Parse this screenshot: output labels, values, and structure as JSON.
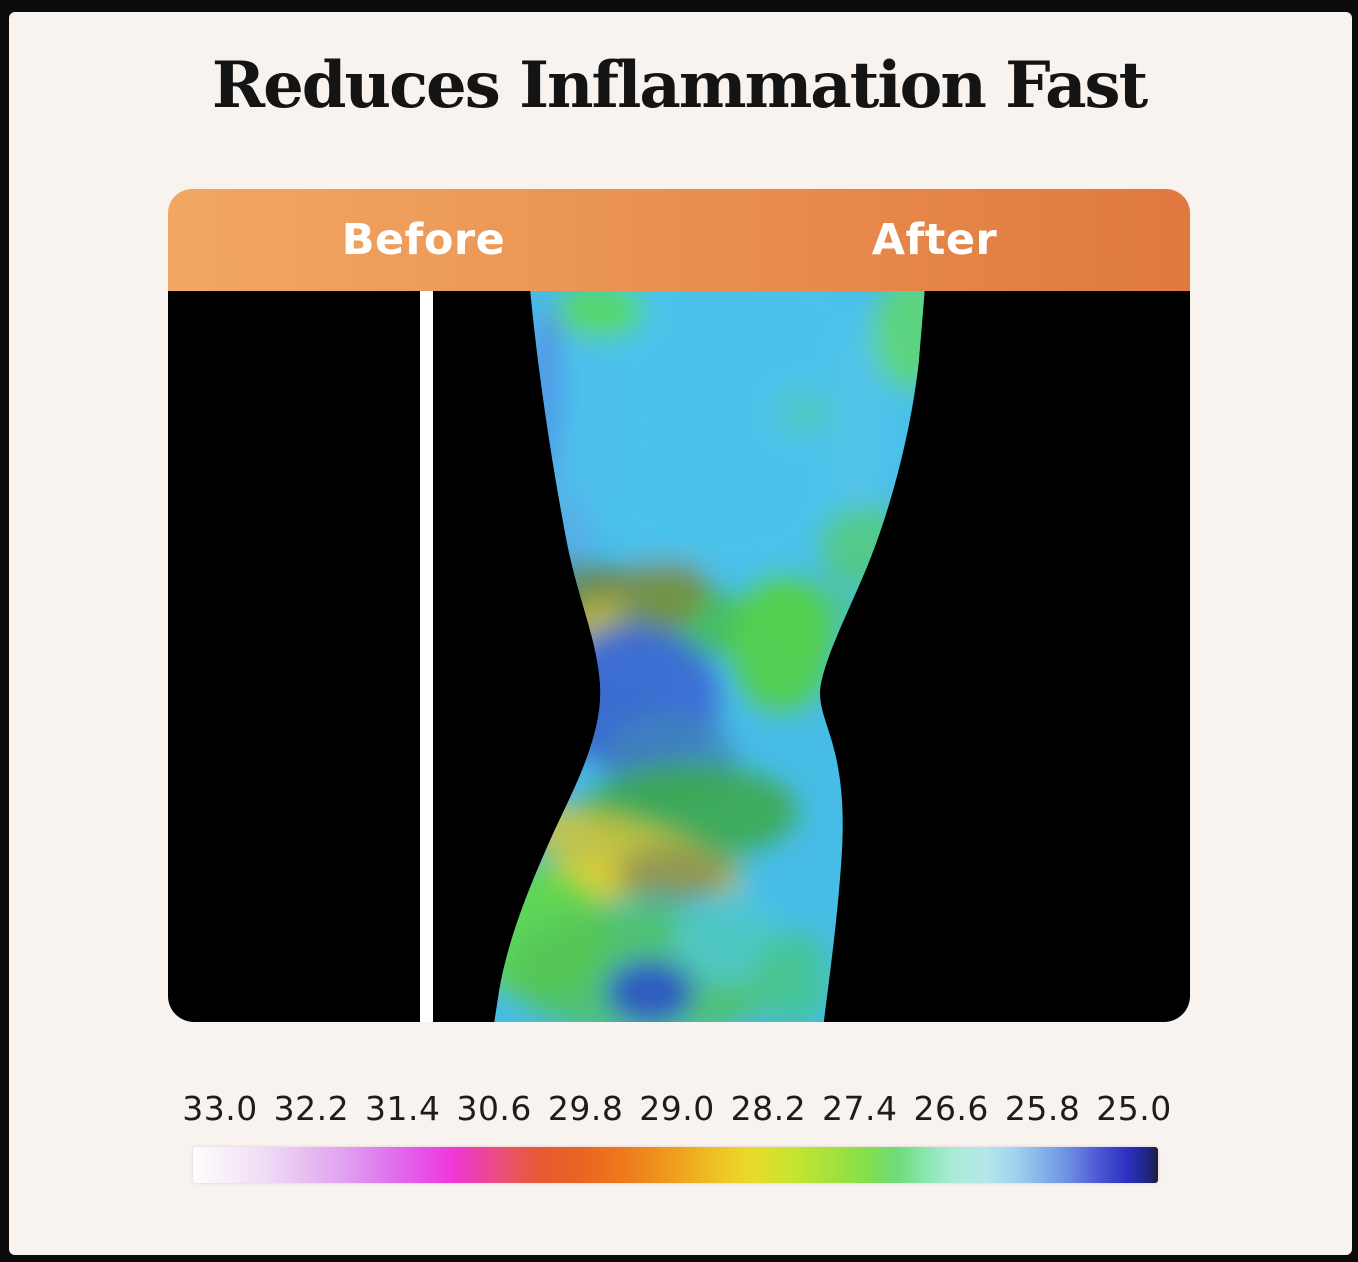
{
  "title": "Reduces Inflammation Fast",
  "comparison": {
    "before_label": "Before",
    "after_label": "After"
  },
  "scale": {
    "tick_values": [
      "33.0",
      "32.2",
      "31.4",
      "30.6",
      "29.8",
      "29.0",
      "28.2",
      "27.4",
      "26.6",
      "25.8",
      "25.0"
    ],
    "min_value": "25.0",
    "max_value": "33.0",
    "gradient_stops": [
      {
        "pos": 0,
        "color": "#fefdfe"
      },
      {
        "pos": 4,
        "color": "#f7ebf8"
      },
      {
        "pos": 8,
        "color": "#eed9f5"
      },
      {
        "pos": 12,
        "color": "#e6bcf2"
      },
      {
        "pos": 16,
        "color": "#e19ef0"
      },
      {
        "pos": 20,
        "color": "#e076ee"
      },
      {
        "pos": 24,
        "color": "#e84fe8"
      },
      {
        "pos": 27,
        "color": "#ee38d6"
      },
      {
        "pos": 30,
        "color": "#ed44a0"
      },
      {
        "pos": 33,
        "color": "#e95464"
      },
      {
        "pos": 36,
        "color": "#e75a33"
      },
      {
        "pos": 40,
        "color": "#e96423"
      },
      {
        "pos": 45,
        "color": "#ee7b1c"
      },
      {
        "pos": 50,
        "color": "#efa01e"
      },
      {
        "pos": 55,
        "color": "#eec824"
      },
      {
        "pos": 58,
        "color": "#e8dc28"
      },
      {
        "pos": 62,
        "color": "#c9e430"
      },
      {
        "pos": 66,
        "color": "#a5e23c"
      },
      {
        "pos": 70,
        "color": "#82de4e"
      },
      {
        "pos": 73,
        "color": "#6edc7a"
      },
      {
        "pos": 76,
        "color": "#8ce6b2"
      },
      {
        "pos": 79,
        "color": "#abecd8"
      },
      {
        "pos": 82,
        "color": "#b5e7ea"
      },
      {
        "pos": 85,
        "color": "#a3d4ee"
      },
      {
        "pos": 88,
        "color": "#86b2ea"
      },
      {
        "pos": 91,
        "color": "#6b8ae2"
      },
      {
        "pos": 94,
        "color": "#4a55d2"
      },
      {
        "pos": 97,
        "color": "#2a2fc0"
      },
      {
        "pos": 99,
        "color": "#20247e"
      },
      {
        "pos": 100,
        "color": "#1c1e38"
      }
    ]
  },
  "colors": {
    "background": "#f9f3ef",
    "frame_border": "#0b0b0b",
    "title_text": "#141414",
    "header_gradient_left": "#f2a862",
    "header_gradient_right": "#e0793f",
    "header_text": "#ffffff",
    "panel_background": "#000000",
    "divider": "#ffffff",
    "tick_text": "#1d1d1d"
  }
}
